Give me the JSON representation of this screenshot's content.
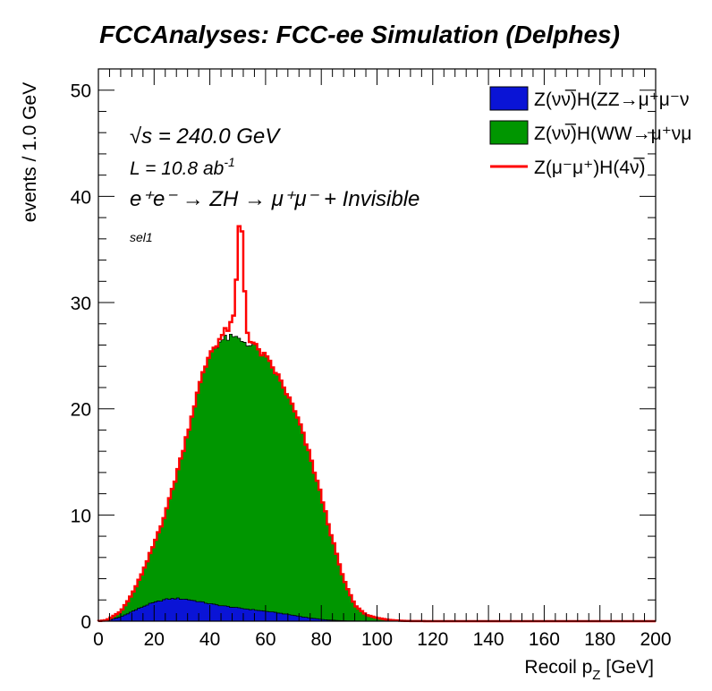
{
  "chart_data": {
    "type": "histogram-stack",
    "title": "FCCAnalyses: FCC-ee Simulation (Delphes)",
    "xlabel_main": "Recoil p",
    "xlabel_sub": "Z",
    "xlabel_unit": " [GeV]",
    "ylabel": "events / 1.0 GeV",
    "xlim": [
      0,
      200
    ],
    "ylim": [
      0,
      52
    ],
    "x_ticks": [
      0,
      20,
      40,
      60,
      80,
      100,
      120,
      140,
      160,
      180,
      200
    ],
    "y_ticks": [
      0,
      10,
      20,
      30,
      40,
      50
    ],
    "tick_labels_x": [
      "0",
      "20",
      "40",
      "60",
      "80",
      "100",
      "120",
      "140",
      "160",
      "180",
      "200"
    ],
    "tick_labels_y": [
      "0",
      "10",
      "20",
      "30",
      "40",
      "50"
    ],
    "colors": {
      "zz": "#0a14d6",
      "ww": "#009600",
      "sig": "#ff0000"
    },
    "annotations": {
      "sqrt_s": "√s = 240.0 GeV",
      "lumi": "L = 10.8 ab",
      "lumi_exp": "-1",
      "process": "e⁺e⁻ → ZH → μ⁺μ⁻ + Invisible",
      "selection": "sel1"
    },
    "legend": [
      {
        "key": "zz",
        "label": "Z(νν̅)H(ZZ→μ⁺μ⁻ν",
        "style": "fill"
      },
      {
        "key": "ww",
        "label": "Z(νν̅)H(WW→μ⁺νμ",
        "style": "fill"
      },
      {
        "key": "sig",
        "label": "Z(μ⁻μ⁺)H(4ν̅)",
        "style": "line"
      }
    ],
    "series": [
      {
        "name": "Z(νν̅)H(ZZ→μ⁺μ⁻νν̅)",
        "key": "zz",
        "profile": [
          [
            0,
            0
          ],
          [
            3,
            0.05
          ],
          [
            8,
            0.4
          ],
          [
            12,
            0.9
          ],
          [
            18,
            1.6
          ],
          [
            24,
            2.05
          ],
          [
            28,
            2.15
          ],
          [
            32,
            2.05
          ],
          [
            36,
            1.85
          ],
          [
            42,
            1.55
          ],
          [
            50,
            1.25
          ],
          [
            58,
            1.0
          ],
          [
            64,
            0.8
          ],
          [
            70,
            0.55
          ],
          [
            76,
            0.3
          ],
          [
            82,
            0.12
          ],
          [
            88,
            0.04
          ],
          [
            95,
            0.01
          ],
          [
            105,
            0
          ],
          [
            200,
            0
          ]
        ]
      },
      {
        "name": "Z(νν̅)H(WW→μ⁺νμ⁻ν̅)",
        "key": "ww",
        "profile": [
          [
            0,
            0
          ],
          [
            3,
            0.05
          ],
          [
            8,
            0.5
          ],
          [
            12,
            1.6
          ],
          [
            16,
            3.3
          ],
          [
            20,
            5.5
          ],
          [
            24,
            8.1
          ],
          [
            28,
            11.6
          ],
          [
            32,
            15.7
          ],
          [
            36,
            20.1
          ],
          [
            40,
            23.6
          ],
          [
            44,
            25.0
          ],
          [
            48,
            25.4
          ],
          [
            52,
            25.2
          ],
          [
            56,
            24.8
          ],
          [
            60,
            23.9
          ],
          [
            64,
            22.5
          ],
          [
            68,
            20.6
          ],
          [
            72,
            18.3
          ],
          [
            76,
            15.2
          ],
          [
            80,
            11.6
          ],
          [
            84,
            7.6
          ],
          [
            88,
            3.9
          ],
          [
            92,
            1.5
          ],
          [
            96,
            0.6
          ],
          [
            100,
            0.3
          ],
          [
            105,
            0.1
          ],
          [
            110,
            0.02
          ],
          [
            120,
            0
          ],
          [
            200,
            0
          ]
        ]
      },
      {
        "name": "Z(μ⁻μ⁺)H(4ν̅)",
        "key": "sig",
        "peak": {
          "center": 51.0,
          "height": 10.5,
          "sigma": 1.1
        },
        "shoulder": {
          "center": 49.0,
          "height": 1.2,
          "sigma": 3.2
        }
      }
    ]
  }
}
